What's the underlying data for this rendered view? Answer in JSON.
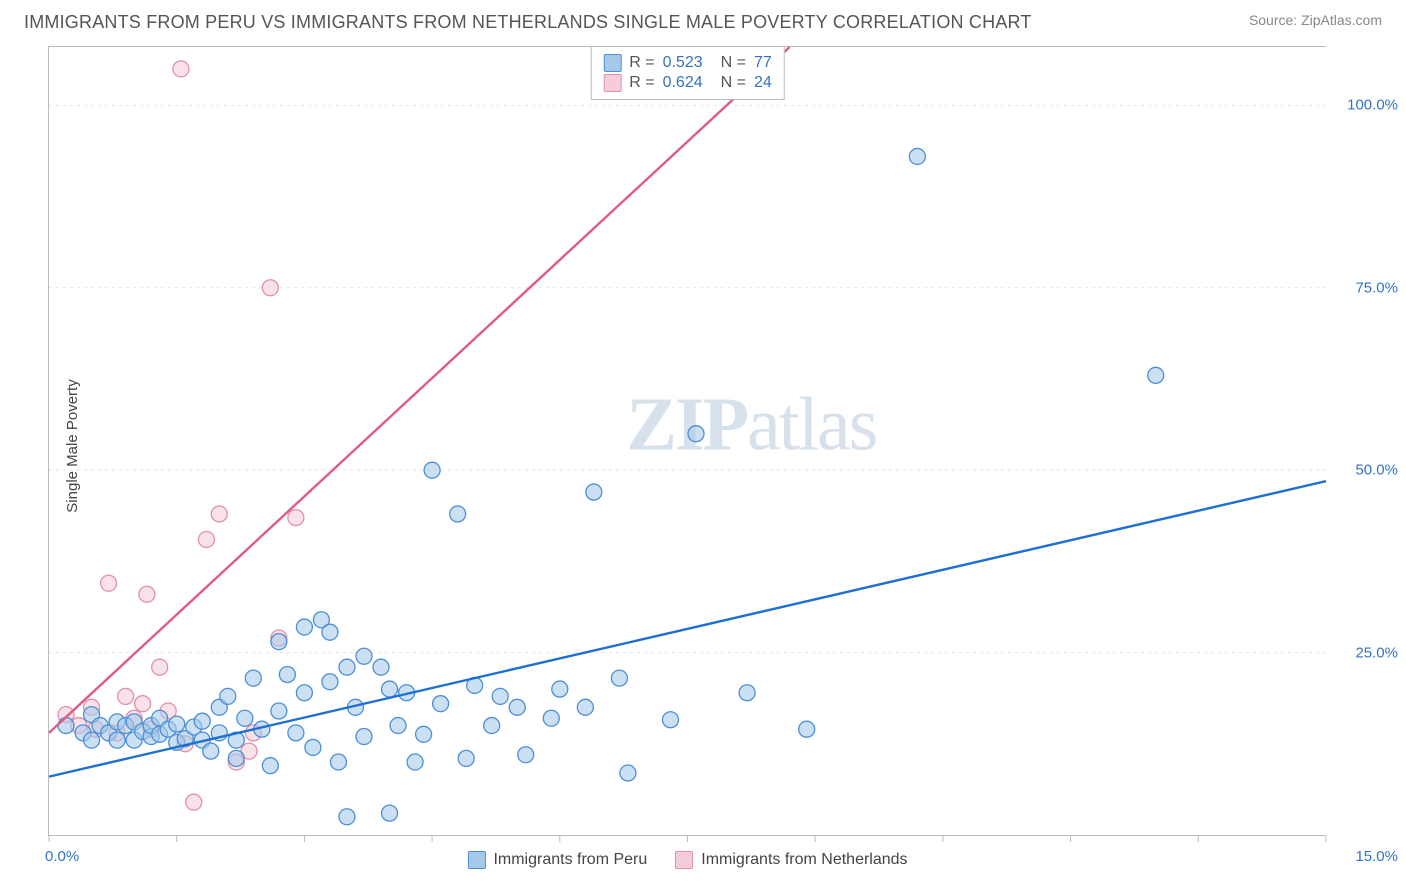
{
  "header": {
    "title": "IMMIGRANTS FROM PERU VS IMMIGRANTS FROM NETHERLANDS SINGLE MALE POVERTY CORRELATION CHART",
    "source_prefix": "Source: ",
    "source_name": "ZipAtlas.com"
  },
  "watermark": {
    "zip": "ZIP",
    "atlas": "atlas"
  },
  "chart": {
    "type": "scatter_with_regression",
    "ylabel": "Single Male Poverty",
    "xlim": [
      0,
      15
    ],
    "ylim": [
      0,
      108
    ],
    "x_ticks": [
      0,
      1.5,
      3.0,
      4.5,
      6.0,
      7.5,
      9.0,
      10.5,
      12.0,
      13.5,
      15.0
    ],
    "x_tick_labels": {
      "0": "0.0%",
      "15": "15.0%"
    },
    "y_ticks": [
      25,
      50,
      75,
      100
    ],
    "y_tick_labels": {
      "25": "25.0%",
      "50": "50.0%",
      "75": "75.0%",
      "100": "100.0%"
    },
    "grid_color": "#e4e4e4",
    "axis_color": "#bbbbbb",
    "background_color": "#ffffff",
    "marker_radius": 8,
    "marker_fill_opacity": 0.28,
    "marker_stroke_width": 1.3,
    "line_stroke_width": 2.4,
    "series": {
      "peru": {
        "label": "Immigrants from Peru",
        "color_stroke": "#4c8fd6",
        "color_fill": "#a6c9ea",
        "line_color": "#1f6fd0",
        "R": "0.523",
        "N": "77",
        "regression": {
          "x1": 0,
          "y1": 8,
          "x2": 15,
          "y2": 48.5
        },
        "points": [
          [
            0.2,
            15
          ],
          [
            0.4,
            14
          ],
          [
            0.5,
            16.5
          ],
          [
            0.5,
            13
          ],
          [
            0.6,
            15
          ],
          [
            0.7,
            14
          ],
          [
            0.8,
            13
          ],
          [
            0.8,
            15.5
          ],
          [
            0.9,
            15
          ],
          [
            1.0,
            13
          ],
          [
            1.0,
            15.5
          ],
          [
            1.1,
            14.2
          ],
          [
            1.2,
            13.5
          ],
          [
            1.2,
            15
          ],
          [
            1.3,
            13.8
          ],
          [
            1.3,
            16
          ],
          [
            1.4,
            14.5
          ],
          [
            1.5,
            12.7
          ],
          [
            1.5,
            15.2
          ],
          [
            1.6,
            13.2
          ],
          [
            1.7,
            14.8
          ],
          [
            1.8,
            13
          ],
          [
            1.8,
            15.6
          ],
          [
            1.9,
            11.5
          ],
          [
            2.0,
            14
          ],
          [
            2.0,
            17.5
          ],
          [
            2.1,
            19
          ],
          [
            2.2,
            13
          ],
          [
            2.2,
            10.5
          ],
          [
            2.3,
            16
          ],
          [
            2.4,
            21.5
          ],
          [
            2.5,
            14.5
          ],
          [
            2.6,
            9.5
          ],
          [
            2.7,
            17
          ],
          [
            2.7,
            26.5
          ],
          [
            2.8,
            22
          ],
          [
            2.9,
            14
          ],
          [
            3.0,
            19.5
          ],
          [
            3.0,
            28.5
          ],
          [
            3.1,
            12
          ],
          [
            3.2,
            29.5
          ],
          [
            3.3,
            21
          ],
          [
            3.3,
            27.8
          ],
          [
            3.4,
            10
          ],
          [
            3.5,
            2.5
          ],
          [
            3.5,
            23
          ],
          [
            3.6,
            17.5
          ],
          [
            3.7,
            13.5
          ],
          [
            3.7,
            24.5
          ],
          [
            3.9,
            23
          ],
          [
            4.0,
            20
          ],
          [
            4.0,
            3
          ],
          [
            4.1,
            15
          ],
          [
            4.2,
            19.5
          ],
          [
            4.3,
            10
          ],
          [
            4.4,
            13.8
          ],
          [
            4.5,
            50
          ],
          [
            4.6,
            18
          ],
          [
            4.8,
            44
          ],
          [
            4.9,
            10.5
          ],
          [
            5.0,
            20.5
          ],
          [
            5.2,
            15
          ],
          [
            5.3,
            19
          ],
          [
            5.5,
            17.5
          ],
          [
            5.6,
            11
          ],
          [
            5.9,
            16
          ],
          [
            6.0,
            20
          ],
          [
            6.3,
            17.5
          ],
          [
            6.4,
            47
          ],
          [
            6.7,
            21.5
          ],
          [
            6.8,
            8.5
          ],
          [
            7.3,
            15.8
          ],
          [
            7.6,
            55
          ],
          [
            8.2,
            19.5
          ],
          [
            8.9,
            14.5
          ],
          [
            10.2,
            93
          ],
          [
            13.0,
            63
          ]
        ]
      },
      "netherlands": {
        "label": "Immigrants from Netherlands",
        "color_stroke": "#e290a9",
        "color_fill": "#f5cdd8",
        "line_color": "#e15a86",
        "R": "0.624",
        "N": "24",
        "regression": {
          "x1": 0,
          "y1": 14,
          "x2": 8.7,
          "y2": 108
        },
        "points": [
          [
            0.2,
            16.5
          ],
          [
            0.35,
            15
          ],
          [
            0.5,
            17.5
          ],
          [
            0.55,
            14.5
          ],
          [
            0.7,
            34.5
          ],
          [
            0.8,
            14
          ],
          [
            0.9,
            19
          ],
          [
            1.0,
            16
          ],
          [
            1.1,
            18
          ],
          [
            1.15,
            33
          ],
          [
            1.2,
            14.5
          ],
          [
            1.3,
            23
          ],
          [
            1.4,
            17
          ],
          [
            1.55,
            105
          ],
          [
            1.6,
            12.5
          ],
          [
            1.7,
            4.5
          ],
          [
            1.85,
            40.5
          ],
          [
            2.0,
            44
          ],
          [
            2.2,
            10
          ],
          [
            2.35,
            11.5
          ],
          [
            2.4,
            14
          ],
          [
            2.6,
            75
          ],
          [
            2.9,
            43.5
          ],
          [
            2.7,
            27
          ]
        ]
      }
    },
    "legend_top": {
      "R_sym": "R =",
      "N_sym": "N ="
    }
  }
}
